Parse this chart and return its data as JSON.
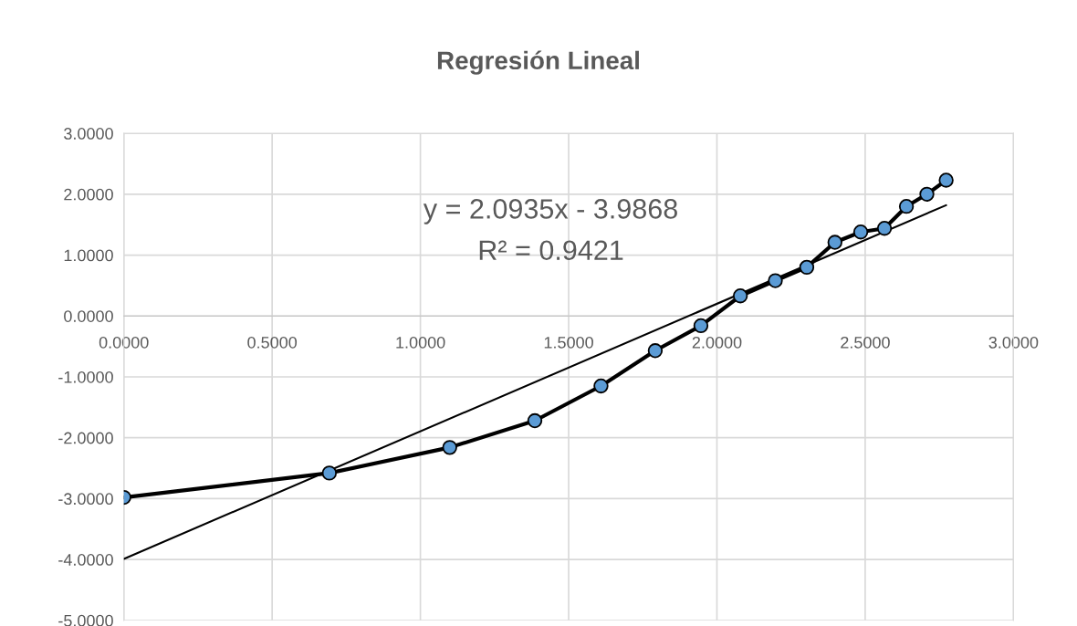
{
  "chart_data": {
    "type": "line",
    "title": "Regresión Lineal",
    "x": [
      0.0,
      0.693,
      1.099,
      1.386,
      1.609,
      1.792,
      1.946,
      2.079,
      2.197,
      2.303,
      2.398,
      2.485,
      2.565,
      2.639,
      2.708,
      2.773
    ],
    "series": [
      {
        "color": "#000000",
        "colors": [
          "#5b9bd5",
          "#5b9bd5",
          "#5b9bd5",
          "#5b9bd5",
          "#5b9bd5",
          "#5b9bd5",
          "#5b9bd5",
          "#5b9bd5",
          "#5b9bd5",
          "#5b9bd5",
          "#5b9bd5",
          "#5b9bd5",
          "#5b9bd5",
          "#5b9bd5",
          "#5b9bd5",
          "#5b9bd5"
        ],
        "marker": "circle",
        "values": [
          -2.98,
          -2.58,
          -2.16,
          -1.72,
          -1.15,
          -0.57,
          -0.16,
          0.33,
          0.58,
          0.8,
          1.21,
          1.38,
          1.44,
          1.8,
          2.0,
          2.23
        ]
      },
      {
        "color": "#000000",
        "marker": "none",
        "x": [
          0.0,
          2.773
        ],
        "values": [
          -3.99,
          1.82
        ]
      }
    ],
    "annotations": [
      "y = 2.0935x - 3.9868",
      "R² = 0.9421"
    ],
    "xlim": [
      0,
      3
    ],
    "xticks": [
      {
        "value": 0,
        "label": "0.0000"
      },
      {
        "value": 0.5,
        "label": "0.5000"
      },
      {
        "value": 1,
        "label": "1.0000"
      },
      {
        "value": 1.5,
        "label": "1.5000"
      },
      {
        "value": 2,
        "label": "2.0000"
      },
      {
        "value": 2.5,
        "label": "2.5000"
      },
      {
        "value": 3,
        "label": "3.0000"
      }
    ],
    "ylim": [
      -5,
      3
    ],
    "yticks": [
      {
        "value": -5,
        "label": "-5.0000"
      },
      {
        "value": -4,
        "label": "-4.0000"
      },
      {
        "value": -3,
        "label": "-3.0000"
      },
      {
        "value": -2,
        "label": "-2.0000"
      },
      {
        "value": -1,
        "label": "-1.0000"
      },
      {
        "value": 0,
        "label": "0.0000"
      },
      {
        "value": 1,
        "label": "1.0000"
      },
      {
        "value": 2,
        "label": "2.0000"
      },
      {
        "value": 3,
        "label": "3.0000"
      }
    ],
    "grid": true
  }
}
